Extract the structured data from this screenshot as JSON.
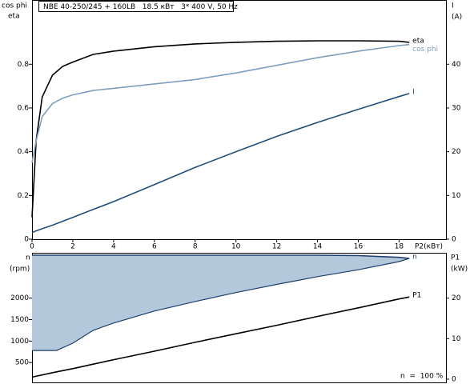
{
  "chart_data": [
    {
      "type": "line",
      "title": "NBE 40-250/245 + 160LB   18.5 кВт   3* 400 V, 50 Hz",
      "ylabel": [
        "cos phi",
        "eta"
      ],
      "y2label": [
        "I",
        "(A)"
      ],
      "xlabel": "P2(кВт)",
      "x": [
        0,
        0.2,
        0.5,
        1,
        1.5,
        2,
        3,
        4,
        6,
        8,
        10,
        12,
        14,
        16,
        18,
        18.5
      ],
      "xlim": [
        0,
        20.3
      ],
      "xticks": [
        0,
        2,
        4,
        6,
        8,
        10,
        12,
        14,
        16,
        18
      ],
      "ylim": [
        0,
        1.09
      ],
      "yticks": [
        0,
        0.2,
        0.4,
        0.6,
        0.8
      ],
      "y2lim": [
        0,
        54.5
      ],
      "y2ticks": [
        0,
        10,
        20,
        30,
        40
      ],
      "series": [
        {
          "name": "eta",
          "color": "#000000",
          "values": [
            0.1,
            0.45,
            0.65,
            0.75,
            0.79,
            0.81,
            0.845,
            0.86,
            0.88,
            0.893,
            0.9,
            0.905,
            0.907,
            0.907,
            0.905,
            0.9
          ]
        },
        {
          "name": "cos phi",
          "color": "#7f9fbf",
          "values": [
            0.35,
            0.45,
            0.56,
            0.62,
            0.645,
            0.66,
            0.68,
            0.69,
            0.71,
            0.73,
            0.76,
            0.795,
            0.83,
            0.86,
            0.885,
            0.89
          ]
        },
        {
          "name": "I",
          "color": "#1f4e79",
          "axis": "y2",
          "values": [
            1.5,
            1.9,
            2.4,
            3.2,
            4.1,
            5,
            6.8,
            8.6,
            12.5,
            16.4,
            20,
            23.5,
            26.7,
            29.7,
            32.6,
            33.3
          ]
        }
      ]
    },
    {
      "type": "line",
      "ylabel": [
        "n",
        "(rpm)"
      ],
      "y2label": [
        "P1",
        "(kW)"
      ],
      "annotation": "n  =  100 %",
      "x": [
        0,
        1.2,
        2,
        3,
        4,
        6,
        8,
        10,
        12,
        14,
        16,
        18,
        18.5
      ],
      "xlim": [
        0,
        20.3
      ],
      "ylim": [
        37,
        3037
      ],
      "yticks": [
        500,
        1000,
        1500,
        2000
      ],
      "y2lim": [
        -0.8,
        31
      ],
      "y2ticks": [
        0,
        10,
        20
      ],
      "series": [
        {
          "name": "n",
          "color": "#1f3f6f",
          "fill": "#b4c8dc",
          "values": [
            3000,
            3000,
            3000,
            3000,
            3000,
            3000,
            3000,
            3000,
            3000,
            3000,
            2990,
            2950,
            2925
          ],
          "lower": [
            780,
            780,
            950,
            1250,
            1420,
            1700,
            1920,
            2130,
            2320,
            2500,
            2660,
            2850,
            2925
          ]
        },
        {
          "name": "P1",
          "color": "#000000",
          "axis": "y2",
          "values": [
            0.5,
            1.8,
            2.6,
            3.7,
            4.8,
            6.9,
            9.1,
            11.2,
            13.3,
            15.5,
            17.6,
            19.8,
            20.3
          ]
        }
      ]
    }
  ]
}
